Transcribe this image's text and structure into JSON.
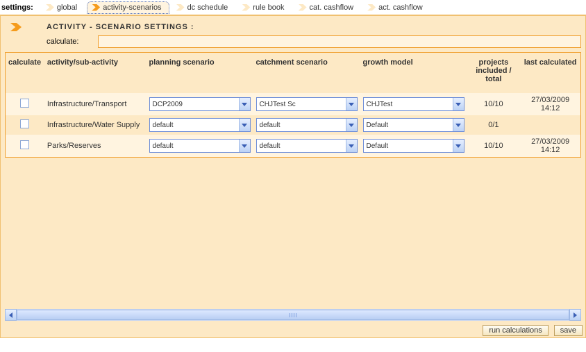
{
  "tab_bar": {
    "label": "settings:",
    "tabs": [
      {
        "label": "global",
        "active": false
      },
      {
        "label": "activity-scenarios",
        "active": true
      },
      {
        "label": "dc schedule",
        "active": false
      },
      {
        "label": "rule book",
        "active": false
      },
      {
        "label": "cat. cashflow",
        "active": false
      },
      {
        "label": "act. cashflow",
        "active": false
      }
    ]
  },
  "page": {
    "title": "ACTIVITY - SCENARIO SETTINGS :",
    "calculate_label": "calculate:",
    "calculate_value": ""
  },
  "table": {
    "headers": {
      "calculate": "calculate",
      "activity": "activity/sub-activity",
      "planning": "planning scenario",
      "catchment": "catchment scenario",
      "growth": "growth model",
      "projects": "projects included / total",
      "last": "last calculated"
    },
    "rows": [
      {
        "activity": "Infrastructure/Transport",
        "planning": "DCP2009",
        "catchment": "CHJTest Sc",
        "growth": "CHJTest",
        "projects": "10/10",
        "last_date": "27/03/2009",
        "last_time": "14:12"
      },
      {
        "activity": "Infrastructure/Water Supply",
        "planning": "default",
        "catchment": "default",
        "growth": "Default",
        "projects": "0/1",
        "last_date": "",
        "last_time": ""
      },
      {
        "activity": "Parks/Reserves",
        "planning": "default",
        "catchment": "default",
        "growth": "Default",
        "projects": "10/10",
        "last_date": "27/03/2009",
        "last_time": "14:12"
      }
    ]
  },
  "footer": {
    "run": "run calculations",
    "save": "save"
  }
}
